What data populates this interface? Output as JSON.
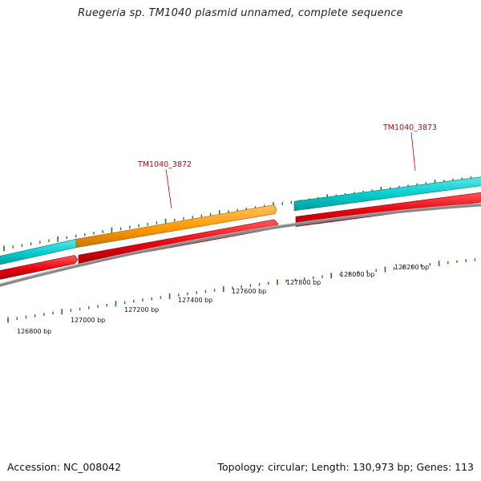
{
  "title": "Ruegeria sp. TM1040 plasmid unnamed, complete sequence",
  "footer": {
    "accession": "Accession: NC_008042",
    "summary": "Topology: circular; Length: 130,973 bp; Genes: 113"
  },
  "scale_labels": [
    "126800 bp",
    "127000 bp",
    "127200 bp",
    "127400 bp",
    "127600 bp",
    "127800 bp",
    "128000 bp",
    "128200 bp"
  ],
  "genes": [
    {
      "name": "TM1040_3872",
      "color": "#ff9900"
    },
    {
      "name": "TM1040_3873",
      "color": "#00cccc"
    }
  ],
  "colors": {
    "cyan_feature": "#00cccc",
    "orange_feature": "#ff9900",
    "red_feature": "#e8000d",
    "backbone": "#808080",
    "tick_marks": "#1f7a1f",
    "gene_label": "#cc0000"
  }
}
